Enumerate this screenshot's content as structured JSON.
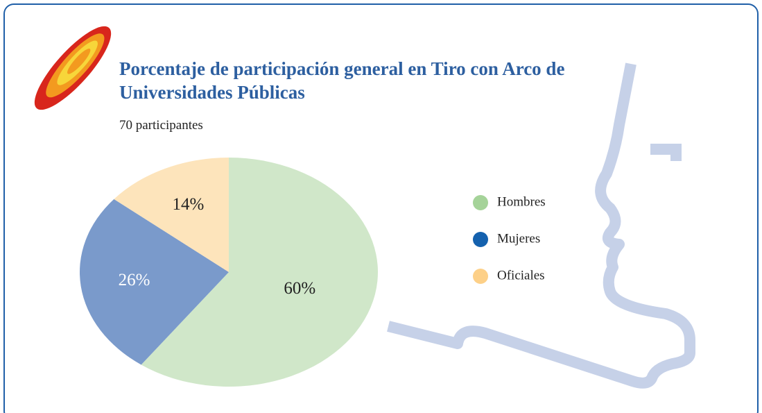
{
  "chart_data": {
    "type": "pie",
    "title": "Porcentaje de participación general en Tiro con Arco de Universidades Públicas",
    "subtitle": "70 participantes",
    "categories": [
      "Hombres",
      "Mujeres",
      "Oficiales"
    ],
    "values": [
      60,
      26,
      14
    ],
    "value_labels": [
      "60%",
      "26%",
      "14%"
    ],
    "colors": [
      "#d0e7c9",
      "#7a9acb",
      "#fde4bb"
    ],
    "legend_colors": [
      "#a5d399",
      "#1461ae",
      "#fdd088"
    ],
    "legend": "right"
  }
}
